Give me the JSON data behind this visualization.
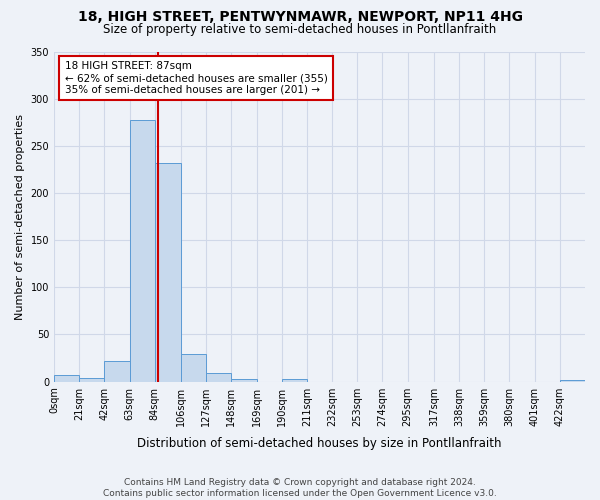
{
  "title": "18, HIGH STREET, PENTWYNMAWR, NEWPORT, NP11 4HG",
  "subtitle": "Size of property relative to semi-detached houses in Pontllanfraith",
  "xlabel": "Distribution of semi-detached houses by size in Pontllanfraith",
  "ylabel": "Number of semi-detached properties",
  "bin_labels": [
    "0sqm",
    "21sqm",
    "42sqm",
    "63sqm",
    "84sqm",
    "106sqm",
    "127sqm",
    "148sqm",
    "169sqm",
    "190sqm",
    "211sqm",
    "232sqm",
    "253sqm",
    "274sqm",
    "295sqm",
    "317sqm",
    "338sqm",
    "359sqm",
    "380sqm",
    "401sqm",
    "422sqm"
  ],
  "bar_heights": [
    7,
    4,
    22,
    277,
    232,
    29,
    9,
    3,
    0,
    3,
    0,
    0,
    0,
    0,
    0,
    0,
    0,
    0,
    0,
    0,
    2
  ],
  "bar_color": "#c7d9ed",
  "bar_edgecolor": "#5b9bd5",
  "property_line_x": 87,
  "annotation_text": "18 HIGH STREET: 87sqm\n← 62% of semi-detached houses are smaller (355)\n35% of semi-detached houses are larger (201) →",
  "annotation_box_color": "#ffffff",
  "annotation_box_edgecolor": "#cc0000",
  "vline_color": "#cc0000",
  "ylim": [
    0,
    350
  ],
  "yticks": [
    0,
    50,
    100,
    150,
    200,
    250,
    300,
    350
  ],
  "grid_color": "#d0d8e8",
  "bg_color": "#eef2f8",
  "footer": "Contains HM Land Registry data © Crown copyright and database right 2024.\nContains public sector information licensed under the Open Government Licence v3.0.",
  "bin_edges": [
    0,
    21,
    42,
    63,
    84,
    106,
    127,
    148,
    169,
    190,
    211,
    232,
    253,
    274,
    295,
    317,
    338,
    359,
    380,
    401,
    422,
    443
  ]
}
